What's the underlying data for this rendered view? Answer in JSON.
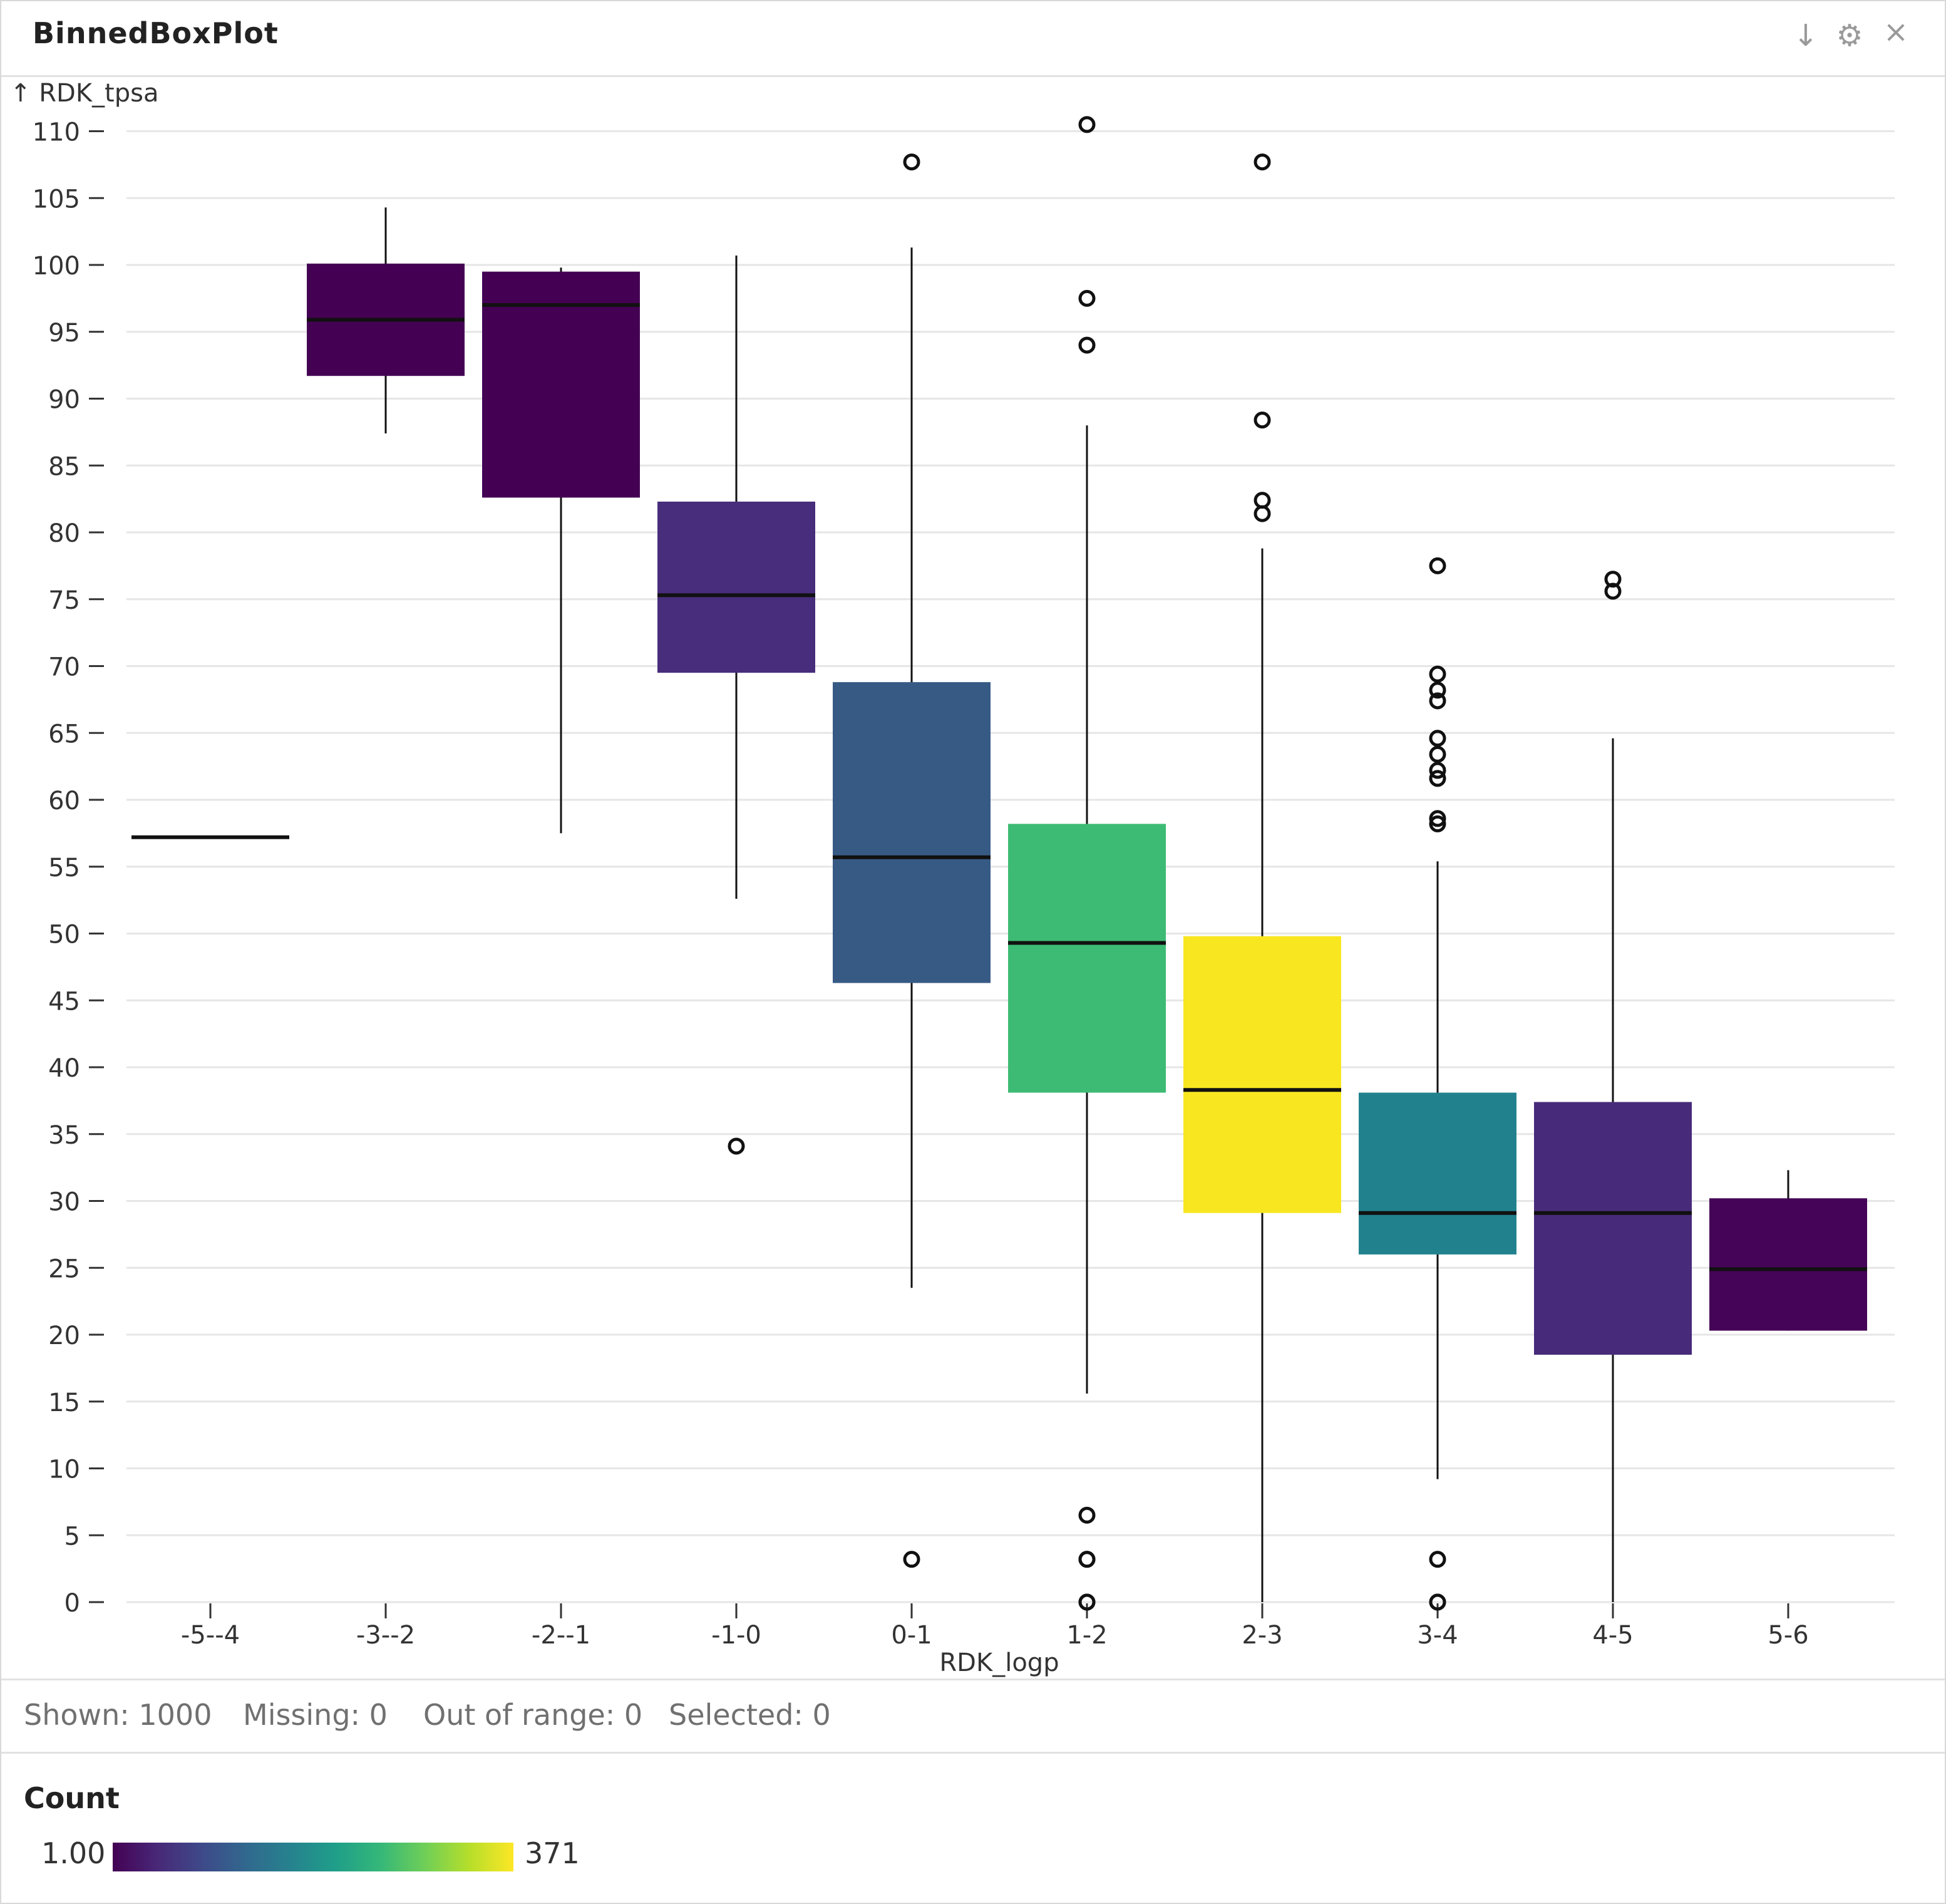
{
  "window": {
    "title": "BinnedBoxPlot",
    "icons": [
      "download-icon",
      "gear-icon",
      "close-icon"
    ],
    "download_glyph": "↓",
    "settings_glyph": "⚙",
    "close_glyph": "×"
  },
  "chart_data": {
    "type": "box",
    "title": "BinnedBoxPlot",
    "xlabel": "RDK_logp",
    "ylabel": "↑ RDK_tpsa",
    "ylim": [
      0,
      110
    ],
    "yticks": [
      0,
      5,
      10,
      15,
      20,
      25,
      30,
      35,
      40,
      45,
      50,
      55,
      60,
      65,
      70,
      75,
      80,
      85,
      90,
      95,
      100,
      105,
      110
    ],
    "grid": true,
    "categories": [
      "-5--4",
      "-3--2",
      "-2--1",
      "-1-0",
      "0-1",
      "1-2",
      "2-3",
      "3-4",
      "4-5",
      "5-6"
    ],
    "boxes": [
      {
        "bin": "-5--4",
        "whisker_low": 57.2,
        "q1": 57.2,
        "median": 57.2,
        "q3": 57.2,
        "whisker_high": 57.2,
        "outliers": [],
        "color": "#440154"
      },
      {
        "bin": "-3--2",
        "whisker_low": 87.4,
        "q1": 91.7,
        "median": 95.9,
        "q3": 100.1,
        "whisker_high": 104.3,
        "outliers": [],
        "color": "#440154"
      },
      {
        "bin": "-2--1",
        "whisker_low": 57.5,
        "q1": 82.6,
        "median": 97.0,
        "q3": 99.5,
        "whisker_high": 99.8,
        "outliers": [],
        "color": "#440154"
      },
      {
        "bin": "-1-0",
        "whisker_low": 52.6,
        "q1": 69.5,
        "median": 75.3,
        "q3": 82.3,
        "whisker_high": 100.7,
        "outliers": [
          34.1
        ],
        "color": "#472d7b"
      },
      {
        "bin": "0-1",
        "whisker_low": 23.5,
        "q1": 46.3,
        "median": 55.7,
        "q3": 68.8,
        "whisker_high": 101.3,
        "outliers": [
          107.7,
          3.2
        ],
        "color": "#375a85"
      },
      {
        "bin": "1-2",
        "whisker_low": 15.6,
        "q1": 38.1,
        "median": 49.3,
        "q3": 58.2,
        "whisker_high": 88.0,
        "outliers": [
          110.5,
          97.5,
          94.0,
          6.5,
          3.2,
          3.2,
          0.0,
          0.0
        ],
        "color": "#3dbb74"
      },
      {
        "bin": "2-3",
        "whisker_low": 0.0,
        "q1": 29.1,
        "median": 38.3,
        "q3": 49.8,
        "whisker_high": 78.8,
        "outliers": [
          107.7,
          88.4,
          82.4,
          81.4
        ],
        "color": "#f8e621"
      },
      {
        "bin": "3-4",
        "whisker_low": 9.2,
        "q1": 26.0,
        "median": 29.1,
        "q3": 38.1,
        "whisker_high": 55.4,
        "outliers": [
          77.5,
          69.4,
          68.2,
          67.4,
          64.6,
          63.4,
          62.2,
          61.6,
          58.6,
          58.2,
          3.2,
          0.0,
          0.0
        ],
        "color": "#21828e"
      },
      {
        "bin": "4-5",
        "whisker_low": 0.0,
        "q1": 18.5,
        "median": 29.1,
        "q3": 37.4,
        "whisker_high": 64.6,
        "outliers": [
          76.5,
          75.6
        ],
        "color": "#472b7a"
      },
      {
        "bin": "5-6",
        "whisker_low": 20.3,
        "q1": 20.3,
        "median": 24.9,
        "q3": 30.2,
        "whisker_high": 32.3,
        "outliers": [],
        "color": "#450457"
      }
    ]
  },
  "status": {
    "shown": "Shown: 1000",
    "missing": "Missing: 0",
    "out_of_range": "Out of range: 0",
    "selected": "Selected: 0"
  },
  "legend": {
    "title": "Count",
    "min_label": "1.00",
    "max_label": "371",
    "colormap": "viridis"
  }
}
